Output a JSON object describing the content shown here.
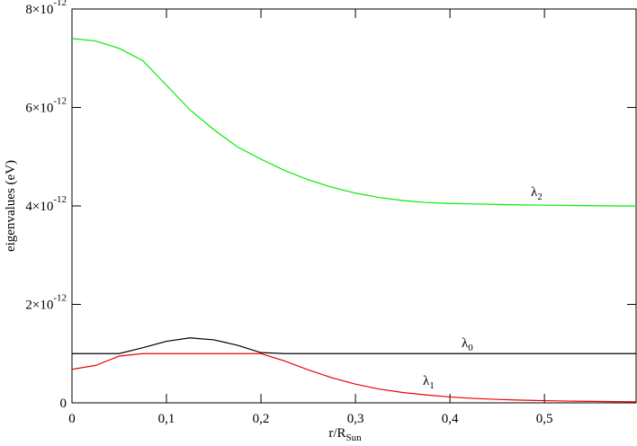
{
  "chart_data": {
    "type": "line",
    "xlabel": "r/R",
    "xlabel_sub": "Sun",
    "ylabel": "eigenvalues (eV)",
    "x": [
      0,
      0.025,
      0.05,
      0.075,
      0.1,
      0.125,
      0.15,
      0.175,
      0.2,
      0.225,
      0.25,
      0.275,
      0.3,
      0.325,
      0.35,
      0.375,
      0.4,
      0.425,
      0.45,
      0.475,
      0.5,
      0.525,
      0.55,
      0.575,
      0.597
    ],
    "series": [
      {
        "name": "λ",
        "index": "2",
        "color": "#00ee00",
        "values": [
          7.4e-12,
          7.35e-12,
          7.2e-12,
          6.95e-12,
          6.45e-12,
          5.95e-12,
          5.55e-12,
          5.2e-12,
          4.95e-12,
          4.72e-12,
          4.53e-12,
          4.38e-12,
          4.26e-12,
          4.17e-12,
          4.11e-12,
          4.07e-12,
          4.05e-12,
          4.04e-12,
          4.03e-12,
          4.02e-12,
          4.015e-12,
          4.01e-12,
          4.005e-12,
          4e-12,
          4e-12
        ]
      },
      {
        "name": "λ",
        "index": "0",
        "color": "#000000",
        "values": [
          1e-12,
          1e-12,
          1e-12,
          1.12e-12,
          1.25e-12,
          1.32e-12,
          1.28e-12,
          1.17e-12,
          1.02e-12,
          1e-12,
          1e-12,
          1e-12,
          1e-12,
          1e-12,
          1e-12,
          1e-12,
          1e-12,
          1e-12,
          1e-12,
          1e-12,
          1e-12,
          1e-12,
          1e-12,
          1e-12,
          1e-12
        ]
      },
      {
        "name": "λ",
        "index": "1",
        "color": "#ee0000",
        "values": [
          6.8e-13,
          7.6e-13,
          9.5e-13,
          1e-12,
          1e-12,
          1e-12,
          1e-12,
          1e-12,
          1e-12,
          8.5e-13,
          6.7e-13,
          5.1e-13,
          3.8e-13,
          2.8e-13,
          2.1e-13,
          1.6e-13,
          1.2e-13,
          9e-14,
          7e-14,
          5.5e-14,
          4.5e-14,
          3.5e-14,
          3e-14,
          2.5e-14,
          2e-14
        ]
      }
    ],
    "xlim": [
      0,
      0.597
    ],
    "xticks": [
      0,
      {
        "value": 0.1,
        "label": "0,1"
      },
      {
        "value": 0.2,
        "label": "0,2"
      },
      {
        "value": 0.3,
        "label": "0,3"
      },
      {
        "value": 0.4,
        "label": "0,4"
      },
      {
        "value": 0.5,
        "label": "0,5"
      }
    ],
    "ylim": [
      0,
      8e-12
    ],
    "yticks": [
      0,
      {
        "value": 2e-12,
        "label": "2×10",
        "exponent": "-12"
      },
      {
        "value": 4e-12,
        "label": "4×10",
        "exponent": "-12"
      },
      {
        "value": 6e-12,
        "label": "6×10",
        "exponent": "-12"
      },
      {
        "value": 8e-12,
        "label": "8×10",
        "exponent": "-12"
      }
    ],
    "grid": false
  }
}
